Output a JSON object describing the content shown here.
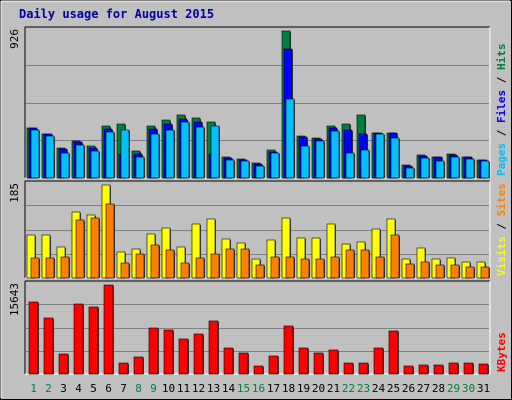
{
  "chart_data": {
    "type": "bar",
    "title": "Daily usage for August 2015",
    "categories": [
      "1",
      "2",
      "3",
      "4",
      "5",
      "6",
      "7",
      "8",
      "9",
      "10",
      "11",
      "12",
      "13",
      "14",
      "15",
      "16",
      "17",
      "18",
      "19",
      "20",
      "21",
      "22",
      "23",
      "24",
      "25",
      "26",
      "27",
      "28",
      "29",
      "30",
      "31"
    ],
    "weekend_days": [
      "1",
      "2",
      "8",
      "9",
      "15",
      "16",
      "22",
      "23",
      "29",
      "30"
    ],
    "panels": [
      {
        "id": "pages-files-hits",
        "max_label": "926",
        "ymax": 926,
        "legend": [
          {
            "label": "Pages",
            "color": "#00C0FF"
          },
          {
            "label": "Files",
            "color": "#0000FF"
          },
          {
            "label": "Hits",
            "color": "#008040"
          }
        ],
        "series": [
          {
            "name": "Hits",
            "color": "#008040",
            "values": [
              315,
              280,
              190,
              235,
              200,
              325,
              340,
              170,
              330,
              365,
              400,
              375,
              355,
              130,
              120,
              95,
              175,
              926,
              265,
              250,
              325,
              340,
              395,
              285,
              285,
              80,
              145,
              135,
              150,
              135,
              115
            ]
          },
          {
            "name": "Files",
            "color": "#0000FF",
            "values": [
              315,
              280,
              185,
              225,
              190,
              310,
              150,
              150,
              310,
              340,
              370,
              355,
              150,
              125,
              115,
              90,
              165,
              810,
              260,
              245,
              315,
              305,
              275,
              285,
              285,
              75,
              140,
              130,
              145,
              130,
              115
            ]
          },
          {
            "name": "Pages",
            "color": "#00C0FF",
            "values": [
              305,
              265,
              160,
              205,
              170,
              290,
              300,
              135,
              280,
              300,
              350,
              320,
              330,
              115,
              110,
              75,
              160,
              500,
              200,
              235,
              295,
              155,
              175,
              275,
              250,
              65,
              125,
              110,
              130,
              120,
              105
            ]
          }
        ]
      },
      {
        "id": "visits-sites",
        "max_label": "185",
        "ymax": 185,
        "legend": [
          {
            "label": "Visits",
            "color": "#FFFF00"
          },
          {
            "label": "Sites",
            "color": "#FF8000"
          }
        ],
        "series": [
          {
            "name": "Visits",
            "color": "#FFFF00",
            "values": [
              85,
              85,
              62,
              132,
              125,
              185,
              52,
              58,
              88,
              100,
              62,
              108,
              118,
              78,
              70,
              38,
              75,
              120,
              80,
              80,
              108,
              68,
              72,
              98,
              118,
              38,
              60,
              38,
              40,
              32,
              32
            ]
          },
          {
            "name": "Sites",
            "color": "#FF8000",
            "values": [
              40,
              40,
              42,
              115,
              120,
              148,
              30,
              48,
              65,
              55,
              30,
              40,
              48,
              58,
              58,
              25,
              42,
              42,
              38,
              38,
              42,
              55,
              55,
              42,
              85,
              28,
              32,
              25,
              25,
              22,
              22
            ]
          }
        ]
      },
      {
        "id": "kbytes",
        "max_label": "15643",
        "ymax": 15643,
        "legend": [
          {
            "label": "KBytes",
            "color": "#FF0000"
          }
        ],
        "series": [
          {
            "name": "KBytes",
            "color": "#FF0000",
            "values": [
              12600,
              9800,
              3600,
              12300,
              11700,
              15643,
              1900,
              3000,
              8100,
              7800,
              6100,
              7000,
              9300,
              4500,
              3700,
              1400,
              3200,
              8400,
              4600,
              3700,
              4300,
              2000,
              2000,
              4500,
              7600,
              1400,
              1500,
              1500,
              2000,
              2000,
              1700
            ]
          }
        ]
      }
    ]
  }
}
